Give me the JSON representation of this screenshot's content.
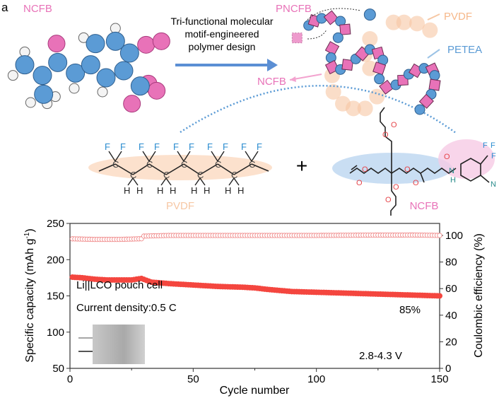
{
  "panel_label": "a",
  "diagram": {
    "monomer_label": "NCFB",
    "arrow_text": [
      "Tri-functional molecular",
      "motif-engineered",
      "polymer design"
    ],
    "polymer_label": "PNCFB",
    "pvdf_label": "PVDF",
    "petea_label": "PETEA",
    "ncfb_side_label": "NCFB",
    "plus_sign": "+",
    "pvdf_structure": {
      "name": "PVDF",
      "carbon": "C",
      "fluorine": "F",
      "hydrogen": "H"
    },
    "ncfb_structure": {
      "name": "NCFB",
      "oxygen": "O",
      "nitrogen": "N",
      "nh": "N",
      "h": "H",
      "fluorine": "F"
    },
    "colors": {
      "pink": "#e872b8",
      "blue": "#5b9bd5",
      "orange": "#f6c7a4",
      "red_atom": "#e5454a",
      "teal": "#2a8c8c"
    }
  },
  "chart_data": {
    "type": "scatter",
    "xlabel": "Cycle number",
    "ylabel": "Specific capacity (mAh g-1)",
    "ylabel_main": "Specific capacity (mAh g",
    "ylabel_sup": "-1",
    "ylabel_end": ")",
    "y2label": "Coulombic efficiency (%)",
    "xlim": [
      0,
      150
    ],
    "ylim": [
      50,
      250
    ],
    "y2lim": [
      0,
      110
    ],
    "xticks": [
      "0",
      "50",
      "100",
      "150"
    ],
    "yticks": [
      "50",
      "100",
      "150",
      "200",
      "250"
    ],
    "y2ticks": [
      "0",
      "20",
      "40",
      "60",
      "80",
      "100"
    ],
    "series": [
      {
        "name": "Specific capacity",
        "axis": "left",
        "color": "#f4463f",
        "marker": "filled circle",
        "x": [
          0,
          5,
          10,
          15,
          20,
          25,
          29,
          33,
          40,
          50,
          60,
          70,
          75,
          80,
          90,
          100,
          110,
          120,
          130,
          140,
          150
        ],
        "y": [
          176,
          175,
          173,
          172,
          172,
          172,
          174,
          169,
          167,
          165,
          163,
          162,
          161,
          159,
          156,
          155,
          154,
          153,
          152,
          151,
          150
        ]
      },
      {
        "name": "Coulombic efficiency",
        "axis": "right",
        "color": "#f08a8a",
        "marker": "open circle",
        "x": [
          0,
          10,
          20,
          29,
          30,
          40,
          60,
          80,
          100,
          120,
          140,
          150
        ],
        "y": [
          97.5,
          97,
          97,
          97.5,
          99.5,
          100,
          100,
          100,
          100,
          100.2,
          100.3,
          100
        ]
      }
    ],
    "annotations": [
      "Li||LCO pouch cell",
      "Current density:0.5 C",
      "85%",
      "2.8-4.3 V"
    ]
  }
}
